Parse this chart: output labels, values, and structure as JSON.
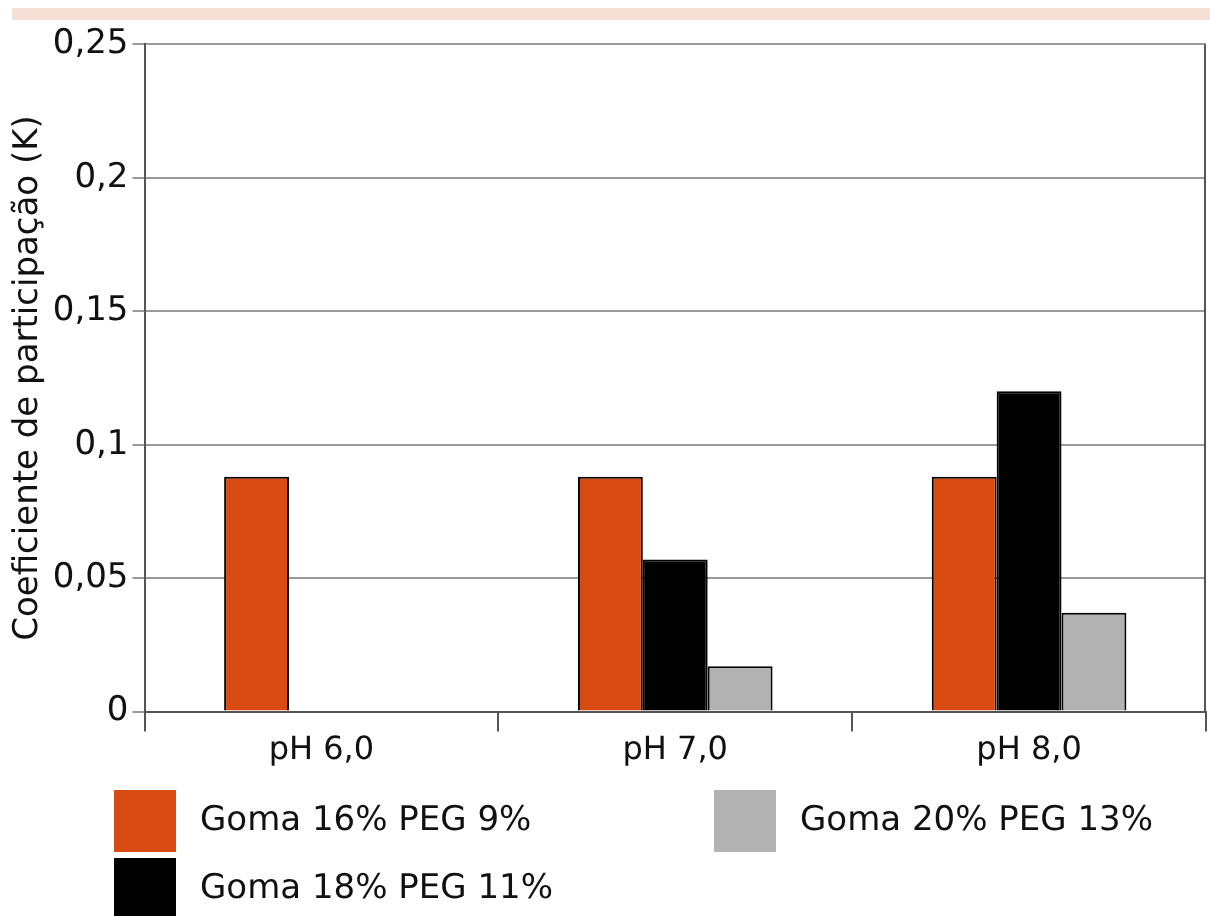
{
  "chart_data": {
    "type": "bar",
    "ylabel": "Coeficiente de participação (K)",
    "categories": [
      "pH 6,0",
      "pH 7,0",
      "pH 8,0"
    ],
    "series": [
      {
        "name": "Goma 16% PEG 9%",
        "color": "#d84c14",
        "values": [
          0.088,
          0.088,
          0.088
        ]
      },
      {
        "name": "Goma 18% PEG 11%",
        "color": "#000000",
        "values": [
          null,
          0.057,
          0.12
        ]
      },
      {
        "name": "Goma 20% PEG 13%",
        "color": "#b2b2b2",
        "values": [
          null,
          0.017,
          0.037
        ]
      }
    ],
    "ylim": [
      0,
      0.25
    ],
    "yticks": [
      0,
      {
        "value": 0.05,
        "label": "0,05"
      },
      {
        "value": 0.1,
        "label": "0,1"
      },
      {
        "value": 0.15,
        "label": "0,15"
      },
      {
        "value": 0.2,
        "label": "0,2"
      },
      {
        "value": 0.25,
        "label": "0,25"
      }
    ],
    "grid": "y",
    "legend": "bottom"
  }
}
